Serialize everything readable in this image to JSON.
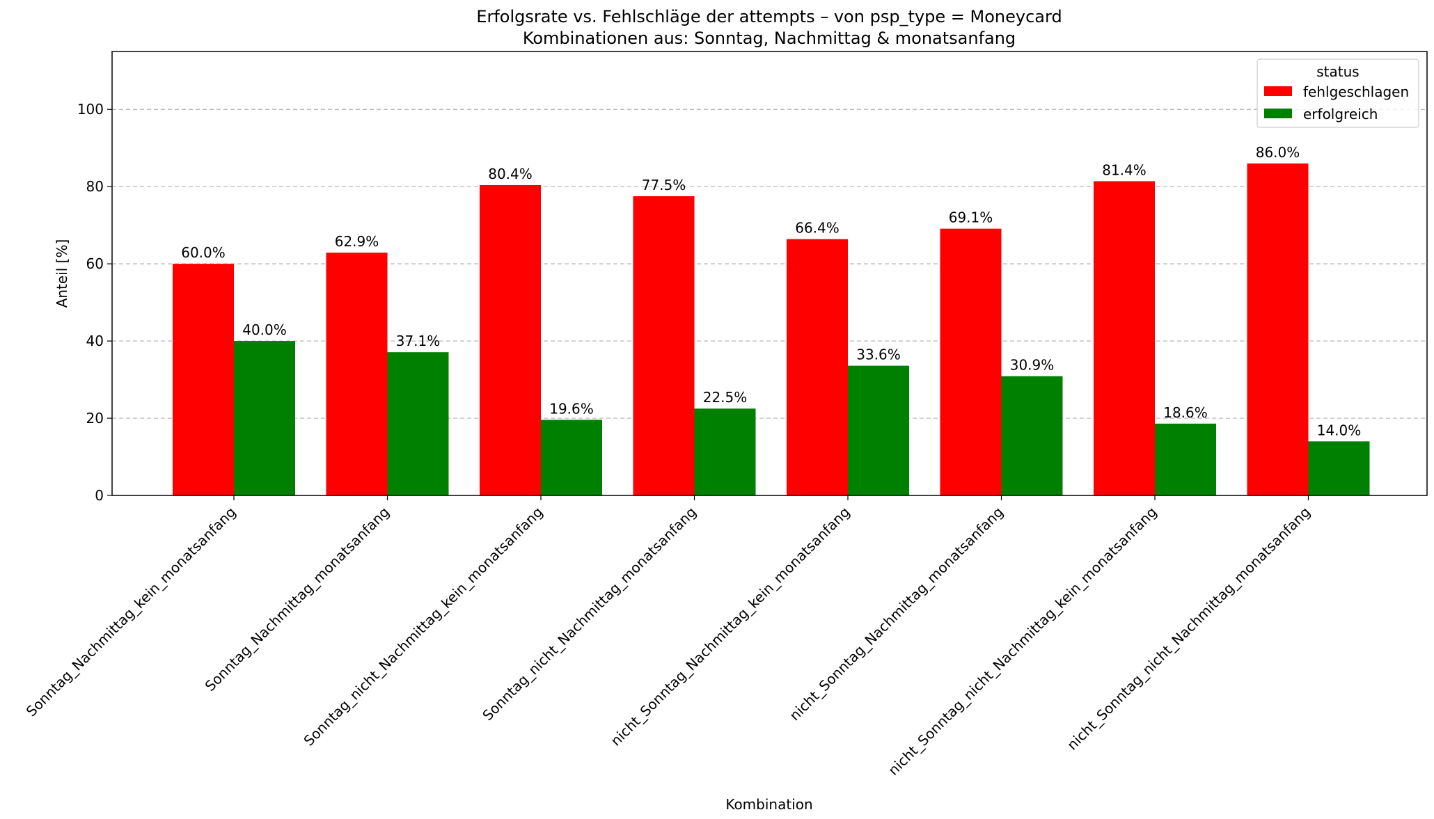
{
  "chart_data": {
    "type": "bar",
    "title": "Erfolgsrate vs. Fehlschläge der attempts – von psp_type = Moneycard",
    "subtitle": "Kombinationen aus: Sonntag, Nachmittag & monatsanfang",
    "xlabel": "Kombination",
    "ylabel": "Anteil [%]",
    "ylim": [
      0,
      115
    ],
    "yticks": [
      0,
      20,
      40,
      60,
      80,
      100
    ],
    "grid": "y-dashed",
    "legend": {
      "title": "status",
      "position": "top-right"
    },
    "categories": [
      "Sonntag_Nachmittag_kein_monatsanfang",
      "Sonntag_Nachmittag_monatsanfang",
      "Sonntag_nicht_Nachmittag_kein_monatsanfang",
      "Sonntag_nicht_Nachmittag_monatsanfang",
      "nicht_Sonntag_Nachmittag_kein_monatsanfang",
      "nicht_Sonntag_Nachmittag_monatsanfang",
      "nicht_Sonntag_nicht_Nachmittag_kein_monatsanfang",
      "nicht_Sonntag_nicht_Nachmittag_monatsanfang"
    ],
    "series": [
      {
        "name": "fehlgeschlagen",
        "color": "#ff0000",
        "values": [
          60.0,
          62.9,
          80.4,
          77.5,
          66.4,
          69.1,
          81.4,
          86.0
        ]
      },
      {
        "name": "erfolgreich",
        "color": "#008000",
        "values": [
          40.0,
          37.1,
          19.6,
          22.5,
          33.6,
          30.9,
          18.6,
          14.0
        ]
      }
    ]
  }
}
